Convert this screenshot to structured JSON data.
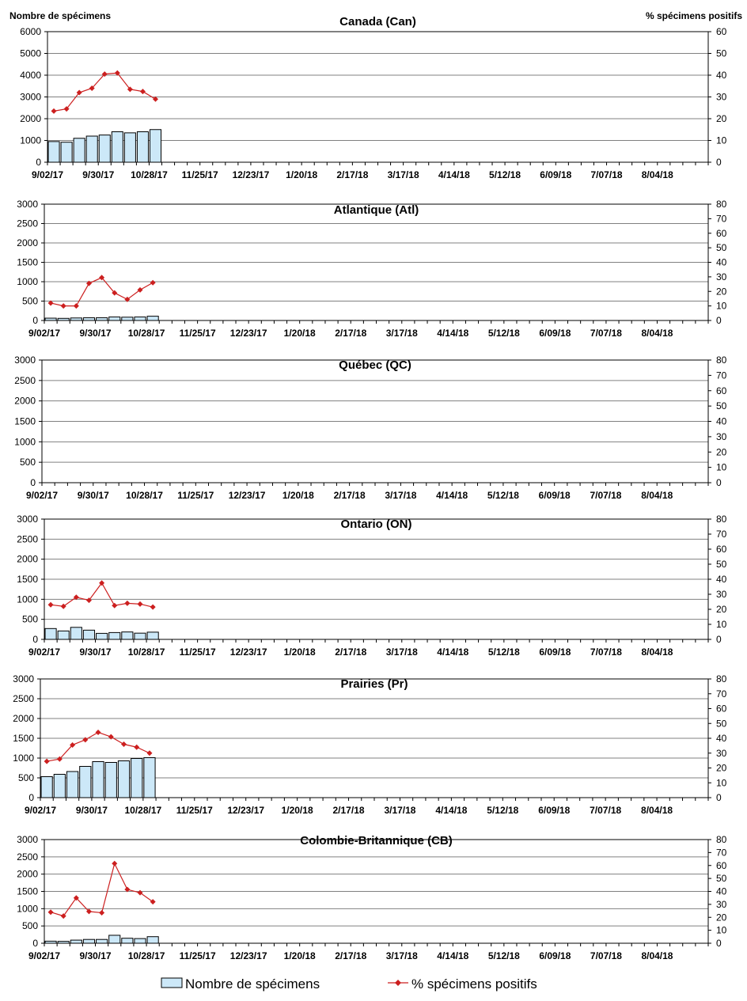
{
  "left_axis_label": "Nombre de spécimens",
  "right_axis_label": "% spécimens positifs",
  "legend": {
    "bar_label": "Nombre de spécimens",
    "line_label": "% spécimens positifs"
  },
  "colors": {
    "bar_fill": "#CCE8F8",
    "bar_stroke": "#000000",
    "line": "#CC1F1F",
    "grid": "#808080"
  },
  "chart_data": [
    {
      "type": "bar+line",
      "title": "Canada (Can)",
      "ylim": [
        0,
        6000
      ],
      "yticks": [
        0,
        1000,
        2000,
        3000,
        4000,
        5000,
        6000
      ],
      "y2lim": [
        0,
        60
      ],
      "y2ticks": [
        0,
        10,
        20,
        30,
        40,
        50,
        60
      ],
      "xtick_labels": [
        "9/02/17",
        "9/30/17",
        "10/28/17",
        "11/25/17",
        "12/23/17",
        "1/20/18",
        "2/17/18",
        "3/17/18",
        "4/14/18",
        "5/12/18",
        "6/09/18",
        "7/07/18",
        "8/04/18"
      ],
      "n_weeks": 52,
      "series": [
        {
          "name": "Nombre de spécimens",
          "kind": "bar",
          "values": [
            950,
            920,
            1100,
            1200,
            1250,
            1400,
            1350,
            1400,
            1500
          ]
        },
        {
          "name": "% spécimens positifs",
          "kind": "line",
          "axis": "right",
          "values": [
            23.5,
            24.5,
            32,
            34,
            40.5,
            41,
            33.5,
            32.5,
            29
          ]
        }
      ]
    },
    {
      "type": "bar+line",
      "title": "Atlantique (Atl)",
      "ylim": [
        0,
        3000
      ],
      "yticks": [
        0,
        500,
        1000,
        1500,
        2000,
        2500,
        3000
      ],
      "y2lim": [
        0,
        80
      ],
      "y2ticks": [
        0,
        10,
        20,
        30,
        40,
        50,
        60,
        70,
        80
      ],
      "xtick_labels": [
        "9/02/17",
        "9/30/17",
        "10/28/17",
        "11/25/17",
        "12/23/17",
        "1/20/18",
        "2/17/18",
        "3/17/18",
        "4/14/18",
        "5/12/18",
        "6/09/18",
        "7/07/18",
        "8/04/18"
      ],
      "n_weeks": 52,
      "series": [
        {
          "name": "Nombre de spécimens",
          "kind": "bar",
          "values": [
            60,
            55,
            65,
            70,
            70,
            90,
            85,
            90,
            110
          ]
        },
        {
          "name": "% spécimens positifs",
          "kind": "line",
          "axis": "right",
          "values": [
            12,
            10,
            10,
            25.5,
            29.5,
            19,
            14.5,
            21,
            26
          ]
        }
      ]
    },
    {
      "type": "bar+line",
      "title": "Québec (QC)",
      "ylim": [
        0,
        3000
      ],
      "yticks": [
        0,
        500,
        1000,
        1500,
        2000,
        2500,
        3000
      ],
      "y2lim": [
        0,
        80
      ],
      "y2ticks": [
        0,
        10,
        20,
        30,
        40,
        50,
        60,
        70,
        80
      ],
      "xtick_labels": [
        "9/02/17",
        "9/30/17",
        "10/28/17",
        "11/25/17",
        "12/23/17",
        "1/20/18",
        "2/17/18",
        "3/17/18",
        "4/14/18",
        "5/12/18",
        "6/09/18",
        "7/07/18",
        "8/04/18"
      ],
      "n_weeks": 52,
      "series": [
        {
          "name": "Nombre de spécimens",
          "kind": "bar",
          "values": []
        },
        {
          "name": "% spécimens positifs",
          "kind": "line",
          "axis": "right",
          "values": []
        }
      ]
    },
    {
      "type": "bar+line",
      "title": "Ontario (ON)",
      "ylim": [
        0,
        3000
      ],
      "yticks": [
        0,
        500,
        1000,
        1500,
        2000,
        2500,
        3000
      ],
      "y2lim": [
        0,
        80
      ],
      "y2ticks": [
        0,
        10,
        20,
        30,
        40,
        50,
        60,
        70,
        80
      ],
      "xtick_labels": [
        "9/02/17",
        "9/30/17",
        "10/28/17",
        "11/25/17",
        "12/23/17",
        "1/20/18",
        "2/17/18",
        "3/17/18",
        "4/14/18",
        "5/12/18",
        "6/09/18",
        "7/07/18",
        "8/04/18"
      ],
      "n_weeks": 52,
      "series": [
        {
          "name": "Nombre de spécimens",
          "kind": "bar",
          "values": [
            270,
            210,
            300,
            230,
            150,
            170,
            185,
            155,
            180
          ]
        },
        {
          "name": "% spécimens positifs",
          "kind": "line",
          "axis": "right",
          "values": [
            23,
            22,
            28,
            26,
            37.5,
            22.5,
            24,
            23.5,
            21.5
          ]
        }
      ]
    },
    {
      "type": "bar+line",
      "title": "Prairies (Pr)",
      "ylim": [
        0,
        3000
      ],
      "yticks": [
        0,
        500,
        1000,
        1500,
        2000,
        2500,
        3000
      ],
      "y2lim": [
        0,
        80
      ],
      "y2ticks": [
        0,
        10,
        20,
        30,
        40,
        50,
        60,
        70,
        80
      ],
      "xtick_labels": [
        "9/02/17",
        "9/30/17",
        "10/28/17",
        "11/25/17",
        "12/23/17",
        "1/20/18",
        "2/17/18",
        "3/17/18",
        "4/14/18",
        "5/12/18",
        "6/09/18",
        "7/07/18",
        "8/04/18"
      ],
      "n_weeks": 52,
      "series": [
        {
          "name": "Nombre de spécimens",
          "kind": "bar",
          "values": [
            530,
            590,
            660,
            790,
            910,
            890,
            930,
            990,
            1010
          ]
        },
        {
          "name": "% spécimens positifs",
          "kind": "line",
          "axis": "right",
          "values": [
            24.5,
            26,
            35.5,
            39,
            44,
            41,
            36,
            34,
            30
          ]
        }
      ]
    },
    {
      "type": "bar+line",
      "title": "Colombie-Britannique (CB)",
      "ylim": [
        0,
        3000
      ],
      "yticks": [
        0,
        500,
        1000,
        1500,
        2000,
        2500,
        3000
      ],
      "y2lim": [
        0,
        80
      ],
      "y2ticks": [
        0,
        10,
        20,
        30,
        40,
        50,
        60,
        70,
        80
      ],
      "xtick_labels": [
        "9/02/17",
        "9/30/17",
        "10/28/17",
        "11/25/17",
        "12/23/17",
        "1/20/18",
        "2/17/18",
        "3/17/18",
        "4/14/18",
        "5/12/18",
        "6/09/18",
        "7/07/18",
        "8/04/18"
      ],
      "n_weeks": 52,
      "series": [
        {
          "name": "Nombre de spécimens",
          "kind": "bar",
          "values": [
            60,
            55,
            90,
            110,
            110,
            230,
            145,
            135,
            190
          ]
        },
        {
          "name": "% spécimens positifs",
          "kind": "line",
          "axis": "right",
          "values": [
            24,
            21,
            35,
            24.5,
            23.5,
            61.5,
            41.5,
            39,
            32
          ]
        }
      ]
    }
  ]
}
